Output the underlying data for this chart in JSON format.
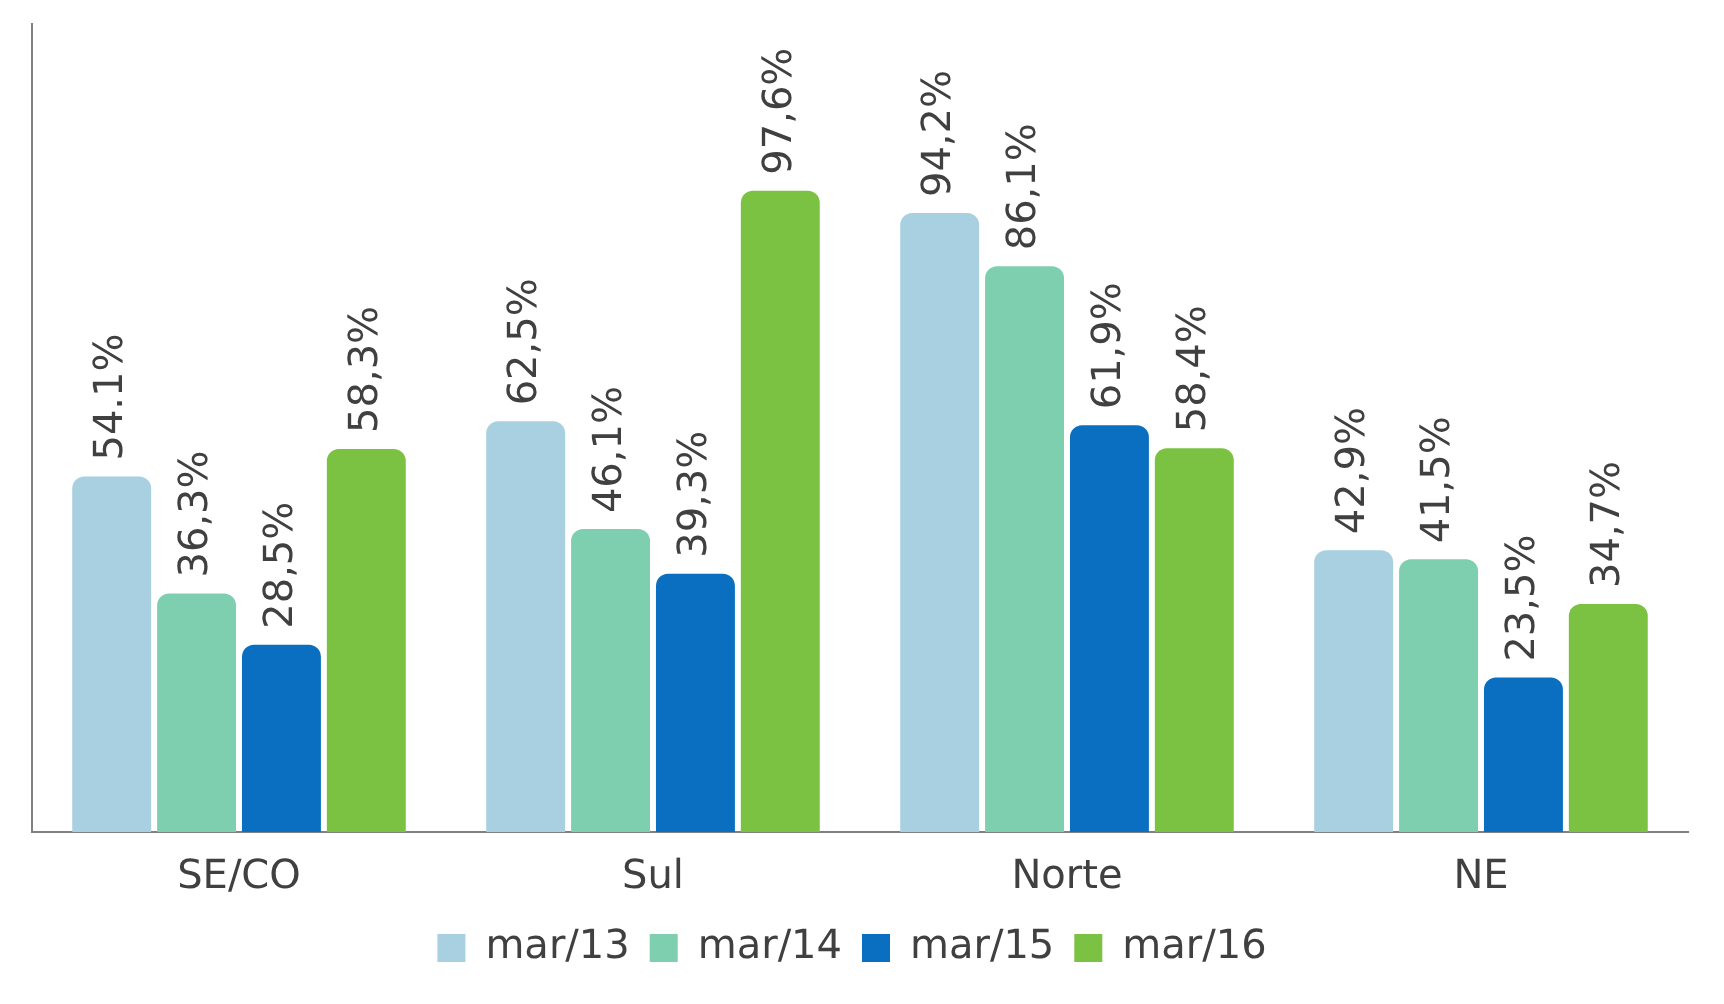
{
  "chart_data": {
    "type": "bar",
    "categories": [
      "SE/CO",
      "Sul",
      "Norte",
      "NE"
    ],
    "series": [
      {
        "name": "mar/13",
        "color": "#a8d0e0",
        "values": [
          54.1,
          62.5,
          94.2,
          42.9
        ],
        "value_labels": [
          "54.1%",
          "62,5%",
          "94,2%",
          "42,9%"
        ]
      },
      {
        "name": "mar/14",
        "color": "#7ecfb0",
        "values": [
          36.3,
          46.1,
          86.1,
          41.5
        ],
        "value_labels": [
          "36,3%",
          "46,1%",
          "86,1%",
          "41,5%"
        ]
      },
      {
        "name": "mar/15",
        "color": "#0a6fc0",
        "values": [
          28.5,
          39.3,
          61.9,
          23.5
        ],
        "value_labels": [
          "28,5%",
          "39,3%",
          "61,9%",
          "23,5%"
        ]
      },
      {
        "name": "mar/16",
        "color": "#7cc242",
        "values": [
          58.3,
          97.6,
          58.4,
          34.7
        ],
        "value_labels": [
          "58,3%",
          "97,6%",
          "58,4%",
          "34,7%"
        ]
      }
    ],
    "legend": "bottom",
    "grid": false,
    "tick_labels": "x"
  }
}
